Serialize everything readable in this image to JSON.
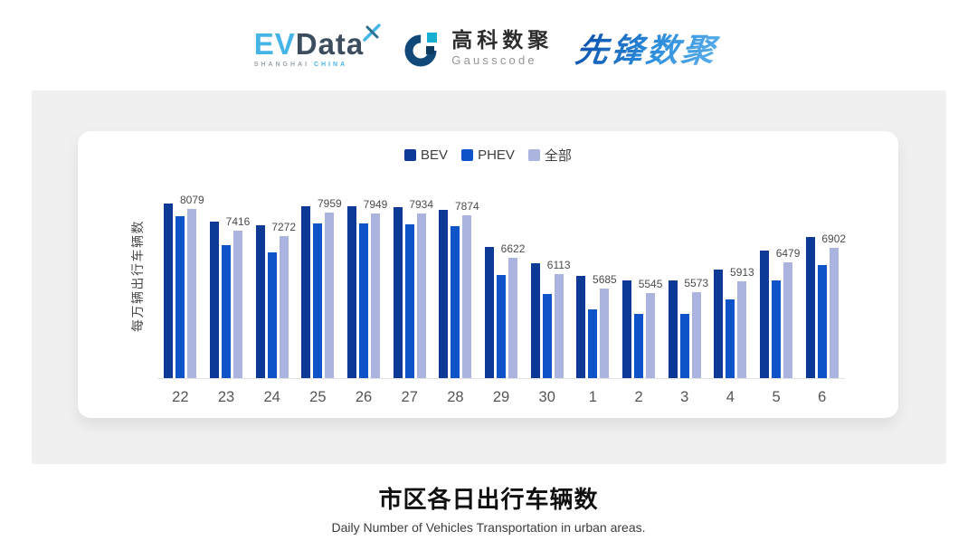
{
  "header": {
    "evdata": {
      "ev": "EV",
      "data": "Data",
      "sub_left": "SHANGHAI",
      "sub_right": "CHINA"
    },
    "gausscode": {
      "cn": "高科数聚",
      "en": "Gausscode"
    },
    "xianfeng": {
      "text": "先锋数聚"
    }
  },
  "chart_data": {
    "type": "bar",
    "title": "市区各日出行车辆数",
    "subtitle": "Daily Number of Vehicles Transportation in urban areas.",
    "ylabel": "每万辆出行车辆数",
    "xlabel": "",
    "categories": [
      "22",
      "23",
      "24",
      "25",
      "26",
      "27",
      "28",
      "29",
      "30",
      "1",
      "2",
      "3",
      "4",
      "5",
      "6"
    ],
    "series": [
      {
        "name": "BEV",
        "color": "#0d3a96",
        "values": [
          8240,
          7700,
          7580,
          8150,
          8170,
          8120,
          8050,
          6940,
          6450,
          6070,
          5920,
          5945,
          6250,
          6815,
          7240
        ],
        "values_estimated_from_bar_heights": true
      },
      {
        "name": "PHEV",
        "color": "#0e53c8",
        "values": [
          7855,
          6990,
          6785,
          7655,
          7635,
          7610,
          7565,
          6090,
          5525,
          5055,
          4930,
          4920,
          5355,
          5935,
          6385
        ],
        "values_estimated_from_bar_heights": true
      },
      {
        "name": "全部",
        "color": "#aab4df",
        "values": [
          8079,
          7416,
          7272,
          7959,
          7949,
          7934,
          7874,
          6622,
          6113,
          5685,
          5545,
          5573,
          5913,
          6479,
          6902
        ],
        "labels_shown": true
      }
    ],
    "ylim": [
      3000,
      9000
    ],
    "grid": false,
    "legend_position": "top-center",
    "axis_line_color": "#e4e4e7",
    "data_label_color": "#4b4b4b",
    "tick_label_color": "#555555"
  }
}
